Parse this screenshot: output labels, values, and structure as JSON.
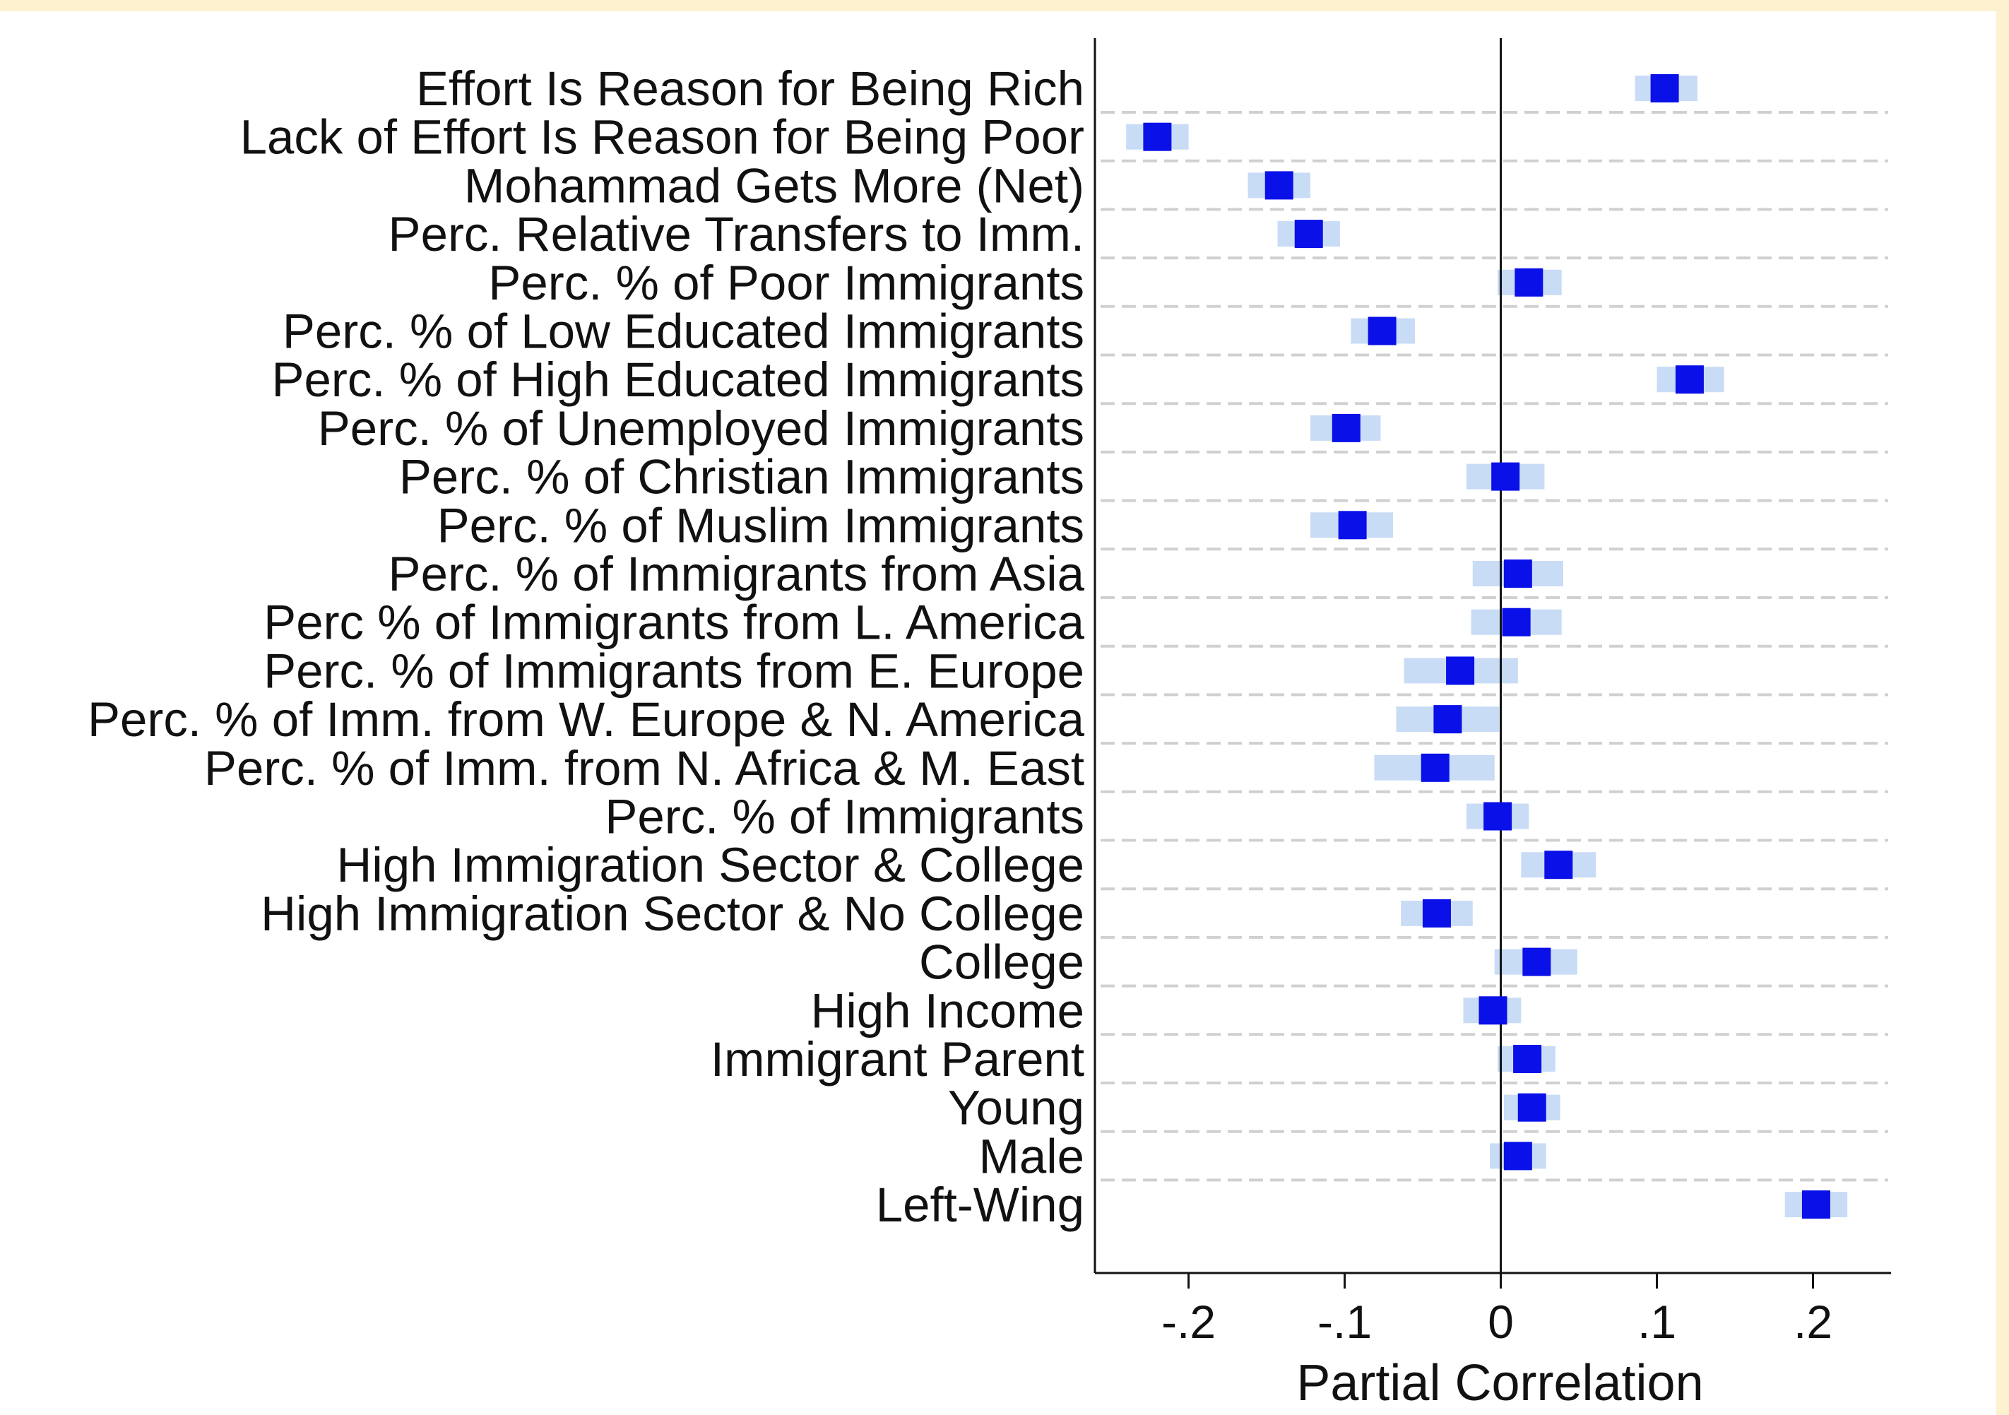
{
  "chart_data": {
    "type": "scatter",
    "orientation": "horizontal",
    "xlabel": "Partial Correlation",
    "ylabel": "",
    "xlim": [
      -0.26,
      0.25
    ],
    "x_ticks": [
      -0.2,
      -0.1,
      0,
      0.1,
      0.2
    ],
    "x_tick_labels": [
      "-.2",
      "-.1",
      "0",
      ".1",
      ".2"
    ],
    "grid": "horizontal dashed",
    "reference_line_x": 0,
    "colors": {
      "point": "#0a10e8",
      "ci": "#c9dcf6",
      "grid": "#d0d0d0",
      "axis": "#111111"
    },
    "series": [
      {
        "categories": [
          "Effort Is Reason for Being Rich",
          "Lack of Effort Is Reason for Being Poor",
          "Mohammad Gets More (Net)",
          "Perc. Relative Transfers to Imm.",
          "Perc. % of Poor Immigrants",
          "Perc. % of Low Educated Immigrants",
          "Perc. % of High Educated Immigrants",
          "Perc. % of Unemployed Immigrants",
          "Perc. % of Christian Immigrants",
          "Perc. % of Muslim Immigrants",
          "Perc. % of Immigrants from Asia",
          "Perc % of Immigrants from L. America",
          "Perc. % of Immigrants from E. Europe",
          "Perc. % of Imm. from W. Europe & N. America",
          "Perc. % of Imm. from N. Africa & M. East",
          "Perc. % of Immigrants",
          "High Immigration Sector & College",
          "High Immigration Sector & No College",
          "College",
          "High Income",
          "Immigrant Parent",
          "Young",
          "Male",
          "Left-Wing"
        ],
        "values": [
          0.105,
          -0.22,
          -0.142,
          -0.123,
          0.018,
          -0.076,
          0.121,
          -0.099,
          0.003,
          -0.095,
          0.011,
          0.01,
          -0.026,
          -0.034,
          -0.042,
          -0.002,
          0.037,
          -0.041,
          0.023,
          -0.005,
          0.017,
          0.02,
          0.011,
          0.202
        ],
        "ci_low": [
          0.086,
          -0.24,
          -0.162,
          -0.143,
          -0.002,
          -0.096,
          0.1,
          -0.122,
          -0.022,
          -0.122,
          -0.018,
          -0.019,
          -0.062,
          -0.067,
          -0.081,
          -0.022,
          0.013,
          -0.064,
          -0.004,
          -0.024,
          -0.002,
          0.002,
          -0.007,
          0.182
        ],
        "ci_high": [
          0.126,
          -0.2,
          -0.122,
          -0.103,
          0.039,
          -0.055,
          0.143,
          -0.077,
          0.028,
          -0.069,
          0.04,
          0.039,
          0.011,
          -0.001,
          -0.004,
          0.018,
          0.061,
          -0.018,
          0.049,
          0.013,
          0.035,
          0.038,
          0.029,
          0.222
        ]
      }
    ]
  }
}
